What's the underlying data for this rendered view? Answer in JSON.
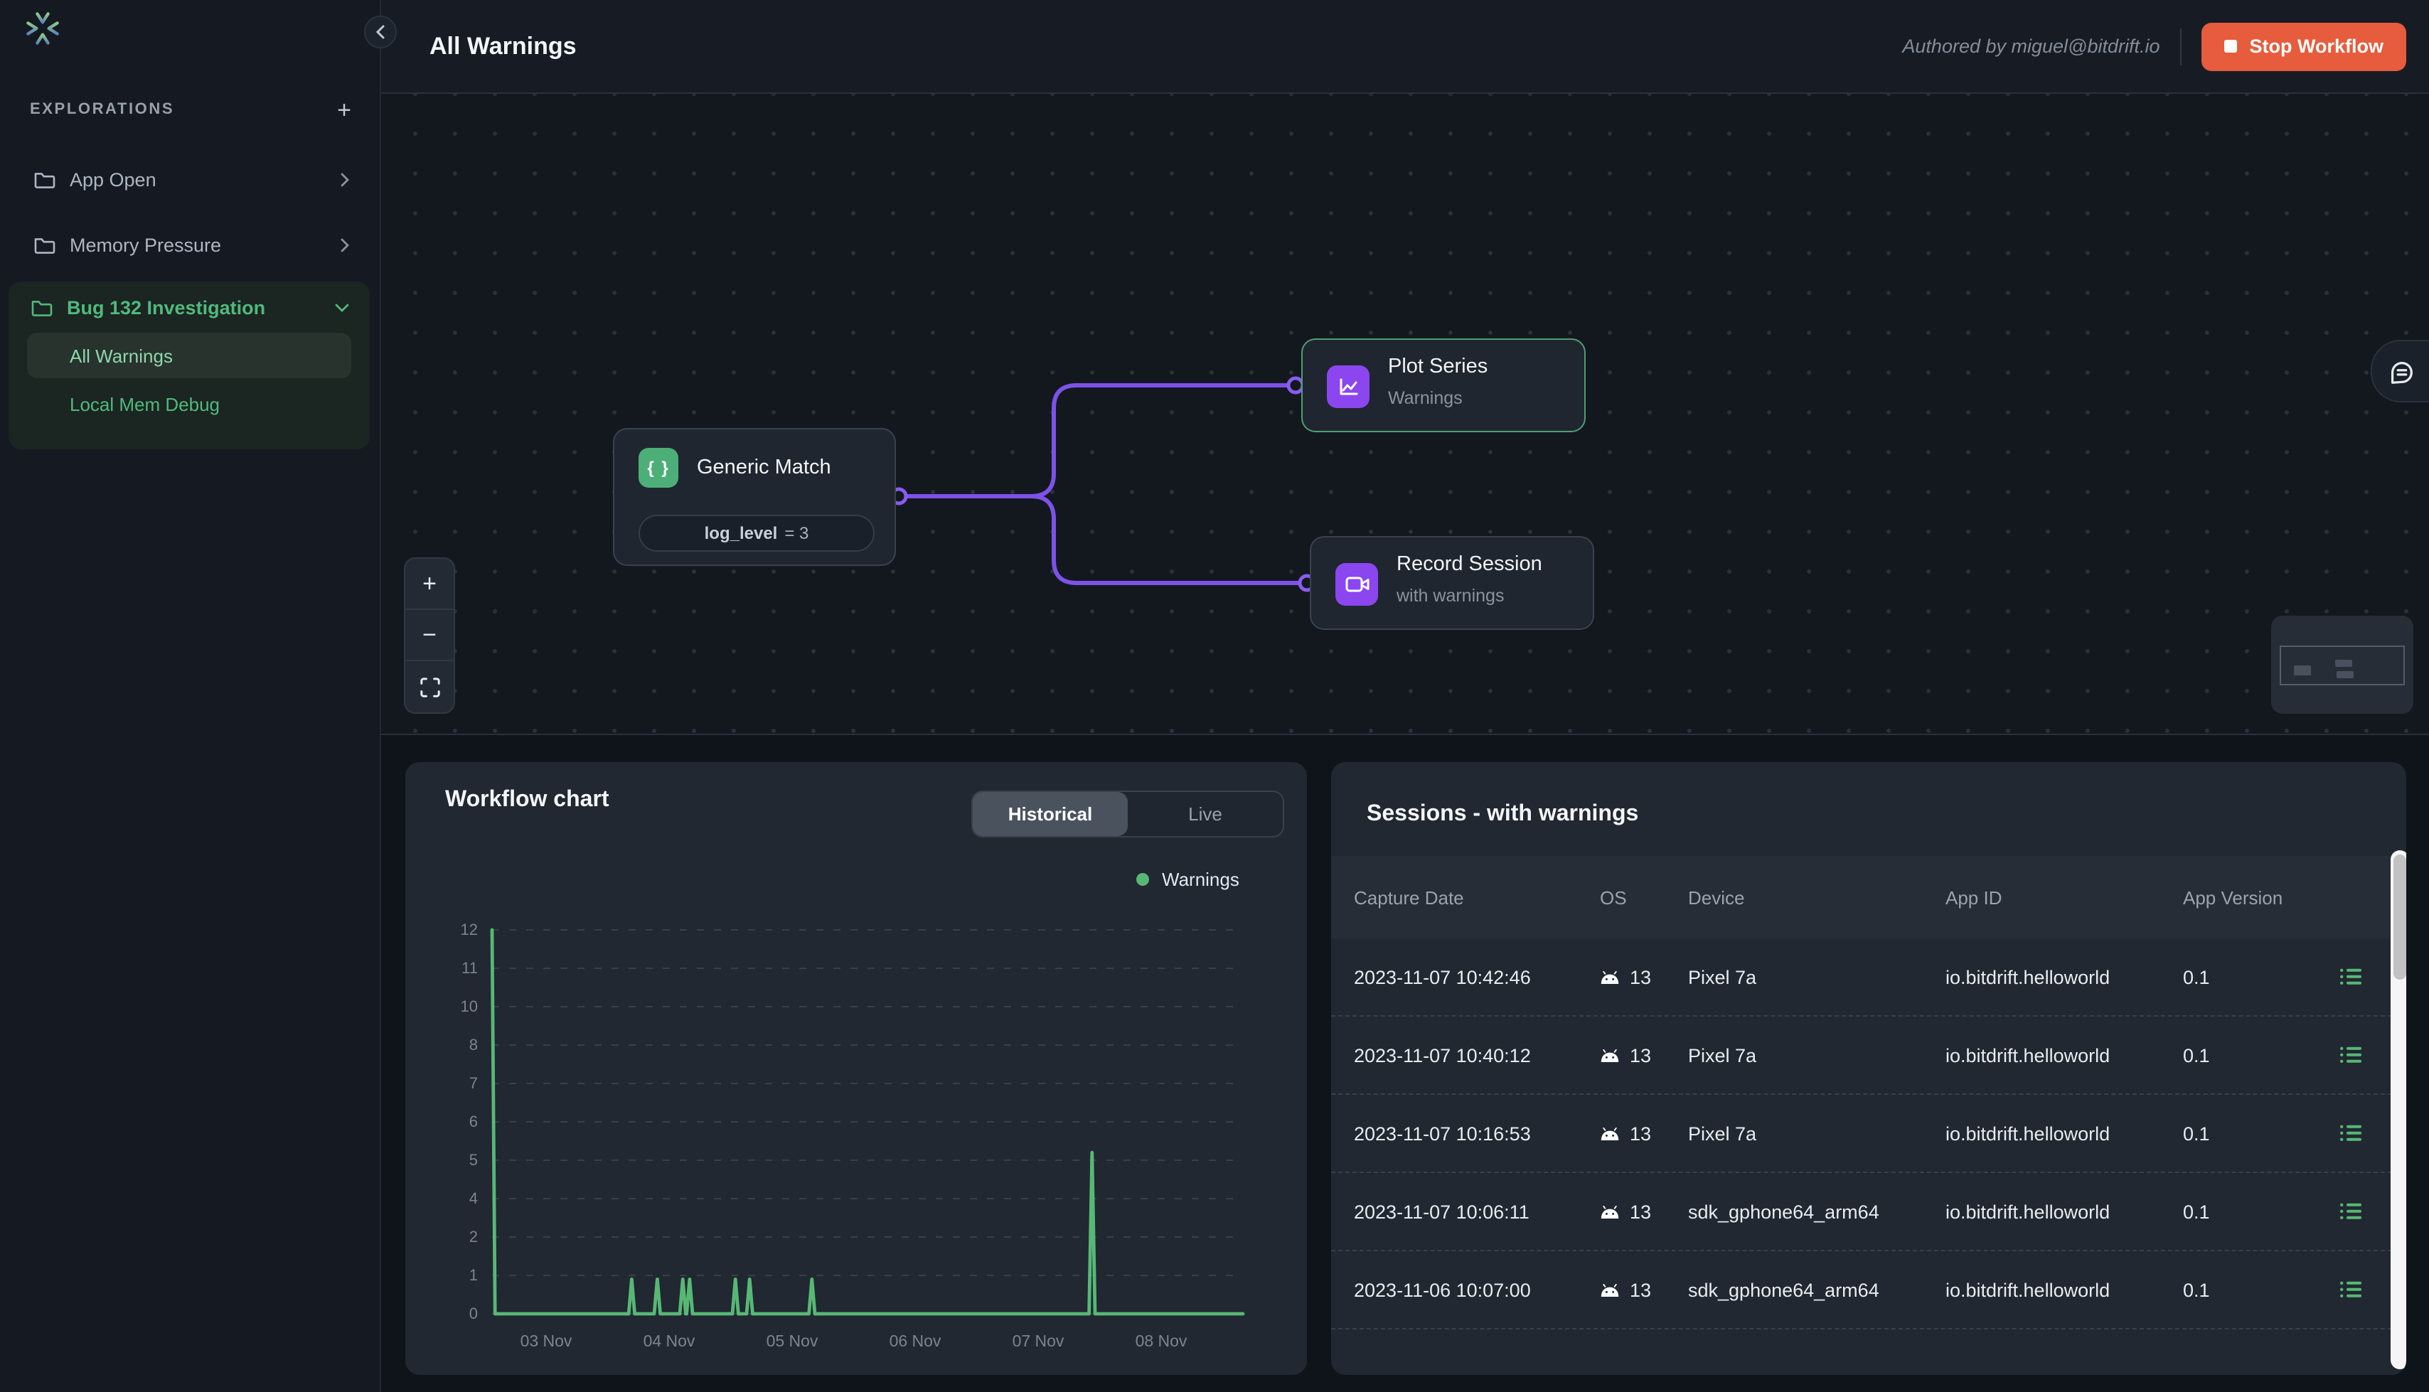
{
  "sidebar": {
    "logo_icon": "bitdrift-starburst-icon",
    "section_title": "EXPLORATIONS",
    "add_icon": "plus-icon",
    "items": [
      {
        "label": "App Open",
        "icon": "folder-icon",
        "chevron": "chevron-right-icon"
      },
      {
        "label": "Memory Pressure",
        "icon": "folder-icon",
        "chevron": "chevron-right-icon"
      }
    ],
    "group": {
      "label": "Bug 132 Investigation",
      "icon": "folder-icon",
      "chevron": "chevron-down-icon",
      "accent_color": "#4fba7e",
      "children": [
        {
          "label": "All Warnings",
          "active": true
        },
        {
          "label": "Local Mem Debug",
          "active": false
        }
      ]
    }
  },
  "topbar": {
    "title": "All Warnings",
    "authored": "Authored by miguel@bitdrift.io",
    "stop_label": "Stop Workflow",
    "stop_color": "#e65c3c",
    "collapse_icon": "chevron-left-icon"
  },
  "canvas": {
    "edge_color": "#7c52e8",
    "nodes": [
      {
        "title": "Generic Match",
        "icon": "braces-icon",
        "icon_color": "#4caf78",
        "condition_key": "log_level",
        "condition_rest": "= 3"
      },
      {
        "title": "Plot Series",
        "subtitle": "Warnings",
        "icon": "line-chart-icon",
        "icon_color": "#8b46f0",
        "selected": true
      },
      {
        "title": "Record Session",
        "subtitle": "with warnings",
        "icon": "video-camera-icon",
        "icon_color": "#8b46f0",
        "selected": false
      }
    ],
    "controls": {
      "zoom_in": "+",
      "zoom_out": "−",
      "fit": "fit-view-icon"
    },
    "chat_icon": "comment-bubble-icon",
    "minimap": "minimap"
  },
  "chart_data": {
    "type": "line",
    "title": "Workflow chart",
    "tabs": [
      {
        "label": "Historical",
        "active": true
      },
      {
        "label": "Live",
        "active": false
      }
    ],
    "legend": [
      {
        "name": "Warnings",
        "color": "#57b876"
      }
    ],
    "x_ticks": [
      "03 Nov",
      "04 Nov",
      "05 Nov",
      "06 Nov",
      "07 Nov",
      "08 Nov"
    ],
    "y_ticks": [
      "12",
      "11",
      "10",
      "8",
      "7",
      "6",
      "5",
      "4",
      "2",
      "1",
      "0"
    ],
    "ylim": [
      0,
      12
    ],
    "grid": "horizontal dashed",
    "legend_position": "top-right",
    "series": [
      {
        "name": "Warnings",
        "color": "#57b876",
        "points_note": "pairs of [fraction-of-x-axis, value]; spikes above flat baseline of 0",
        "points": [
          [
            0,
            12
          ],
          [
            0.004,
            0
          ],
          [
            0.182,
            0
          ],
          [
            0.186,
            0.9
          ],
          [
            0.19,
            0
          ],
          [
            0.216,
            0
          ],
          [
            0.22,
            0.9
          ],
          [
            0.224,
            0
          ],
          [
            0.25,
            0
          ],
          [
            0.254,
            0.9
          ],
          [
            0.258,
            0
          ],
          [
            0.259,
            0
          ],
          [
            0.263,
            0.9
          ],
          [
            0.267,
            0
          ],
          [
            0.32,
            0
          ],
          [
            0.324,
            0.9
          ],
          [
            0.328,
            0
          ],
          [
            0.339,
            0
          ],
          [
            0.343,
            0.9
          ],
          [
            0.347,
            0
          ],
          [
            0.422,
            0
          ],
          [
            0.426,
            0.9
          ],
          [
            0.43,
            0
          ],
          [
            0.795,
            0
          ],
          [
            0.799,
            5.2
          ],
          [
            0.803,
            0
          ],
          [
            1,
            0
          ]
        ]
      }
    ]
  },
  "sessions_panel": {
    "title": "Sessions - with warnings",
    "columns": [
      "Capture Date",
      "OS",
      "Device",
      "App ID",
      "App Version"
    ],
    "os_icon": "android-icon",
    "row_action_icon": "logs-list-icon",
    "rows": [
      {
        "capture_date": "2023-11-07 10:42:46",
        "os": "13",
        "device": "Pixel 7a",
        "app_id": "io.bitdrift.helloworld",
        "app_version": "0.1"
      },
      {
        "capture_date": "2023-11-07 10:40:12",
        "os": "13",
        "device": "Pixel 7a",
        "app_id": "io.bitdrift.helloworld",
        "app_version": "0.1"
      },
      {
        "capture_date": "2023-11-07 10:16:53",
        "os": "13",
        "device": "Pixel 7a",
        "app_id": "io.bitdrift.helloworld",
        "app_version": "0.1"
      },
      {
        "capture_date": "2023-11-07 10:06:11",
        "os": "13",
        "device": "sdk_gphone64_arm64",
        "app_id": "io.bitdrift.helloworld",
        "app_version": "0.1"
      },
      {
        "capture_date": "2023-11-06 10:07:00",
        "os": "13",
        "device": "sdk_gphone64_arm64",
        "app_id": "io.bitdrift.helloworld",
        "app_version": "0.1"
      }
    ]
  }
}
